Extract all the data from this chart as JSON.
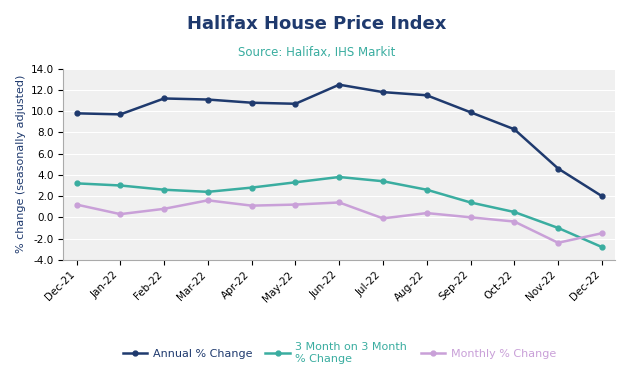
{
  "title": "Halifax House Price Index",
  "subtitle": "Source: Halifax, IHS Markit",
  "xlabel": "",
  "ylabel": "% change (seasonally adjusted)",
  "categories": [
    "Dec-21",
    "Jan-22",
    "Feb-22",
    "Mar-22",
    "Apr-22",
    "May-22",
    "Jun-22",
    "Jul-22",
    "Aug-22",
    "Sep-22",
    "Oct-22",
    "Nov-22",
    "Dec-22"
  ],
  "annual": [
    9.8,
    9.7,
    11.2,
    11.1,
    10.8,
    10.7,
    12.5,
    11.8,
    11.5,
    9.9,
    8.3,
    4.6,
    2.0
  ],
  "three_month": [
    3.2,
    3.0,
    2.6,
    2.4,
    2.8,
    3.3,
    3.8,
    3.4,
    2.6,
    1.4,
    0.5,
    -1.0,
    -2.8
  ],
  "monthly": [
    1.2,
    0.3,
    0.8,
    1.6,
    1.1,
    1.2,
    1.4,
    -0.1,
    0.4,
    0.0,
    -0.4,
    -2.4,
    -1.5
  ],
  "annual_color": "#1f3a6e",
  "three_month_color": "#3aada0",
  "monthly_color": "#c9a0d8",
  "ylim": [
    -4.0,
    14.0
  ],
  "yticks": [
    -4.0,
    -2.0,
    0.0,
    2.0,
    4.0,
    6.0,
    8.0,
    10.0,
    12.0,
    14.0
  ],
  "legend_labels": [
    "Annual % Change",
    "3 Month on 3 Month\n% Change",
    "Monthly % Change"
  ],
  "title_fontsize": 13,
  "subtitle_fontsize": 8.5,
  "ylabel_fontsize": 8,
  "tick_fontsize": 7.5,
  "legend_fontsize": 8,
  "background_color": "#ffffff",
  "plot_bg_color": "#f0f0f0",
  "grid_color": "#ffffff"
}
